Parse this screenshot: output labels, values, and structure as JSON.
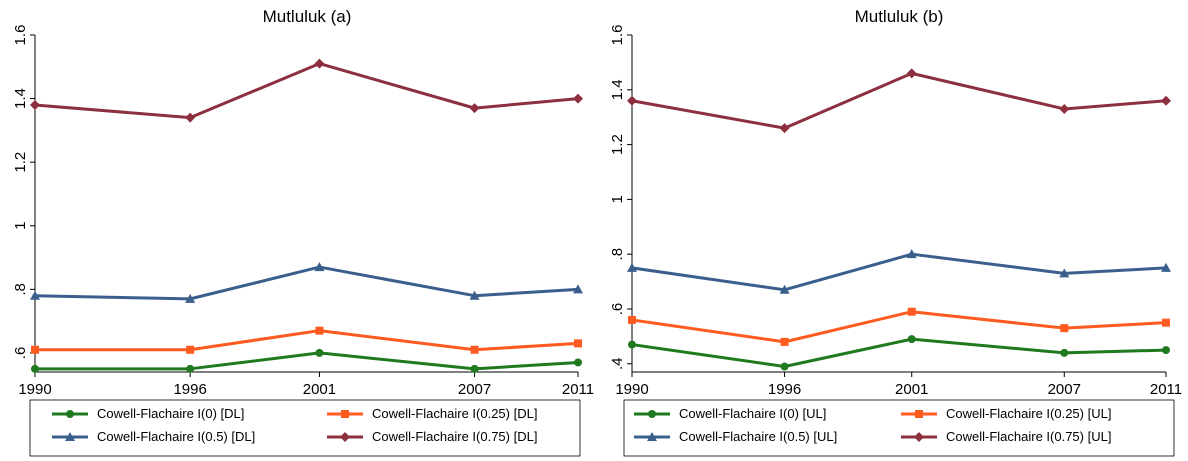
{
  "colors": {
    "I0": "#1f7a1f",
    "I025": "#ff5a1f",
    "I05": "#3a5f8c",
    "I075": "#8c3040"
  },
  "chart_data": [
    {
      "type": "line",
      "title": "Mutluluk (a)",
      "xlabel": "",
      "ylabel": "",
      "x": [
        1990,
        1996,
        2001,
        2007,
        2011
      ],
      "x_tick_labels": [
        "1990",
        "1996",
        "2001",
        "2007",
        "2011"
      ],
      "xlim": [
        1990,
        2011
      ],
      "ylim": [
        0.54,
        1.6
      ],
      "y_ticks": [
        0.6,
        0.8,
        1.0,
        1.2,
        1.4,
        1.6
      ],
      "y_tick_labels": [
        ".6",
        ".8",
        "1",
        "1.2",
        "1.4",
        "1.6"
      ],
      "grid": false,
      "legend_position": "bottom",
      "series": [
        {
          "name": "Cowell-Flachaire I(0) [DL]",
          "color_key": "I0",
          "marker": "circle",
          "values": [
            0.55,
            0.55,
            0.6,
            0.55,
            0.57
          ]
        },
        {
          "name": "Cowell-Flachaire I(0.25) [DL]",
          "color_key": "I025",
          "marker": "square",
          "values": [
            0.61,
            0.61,
            0.67,
            0.61,
            0.63
          ]
        },
        {
          "name": "Cowell-Flachaire I(0.5) [DL]",
          "color_key": "I05",
          "marker": "triangle",
          "values": [
            0.78,
            0.77,
            0.87,
            0.78,
            0.8
          ]
        },
        {
          "name": "Cowell-Flachaire I(0.75) [DL]",
          "color_key": "I075",
          "marker": "diamond",
          "values": [
            1.38,
            1.34,
            1.51,
            1.37,
            1.4
          ]
        }
      ]
    },
    {
      "type": "line",
      "title": "Mutluluk (b)",
      "xlabel": "",
      "ylabel": "",
      "x": [
        1990,
        1996,
        2001,
        2007,
        2011
      ],
      "x_tick_labels": [
        "1990",
        "1996",
        "2001",
        "2007",
        "2011"
      ],
      "xlim": [
        1990,
        2011
      ],
      "ylim": [
        0.37,
        1.6
      ],
      "y_ticks": [
        0.4,
        0.6,
        0.8,
        1.0,
        1.2,
        1.4,
        1.6
      ],
      "y_tick_labels": [
        ".4",
        ".6",
        ".8",
        "1",
        "1.2",
        "1.4",
        "1.6"
      ],
      "grid": false,
      "legend_position": "bottom",
      "series": [
        {
          "name": "Cowell-Flachaire I(0) [UL]",
          "color_key": "I0",
          "marker": "circle",
          "values": [
            0.47,
            0.39,
            0.49,
            0.44,
            0.45
          ]
        },
        {
          "name": "Cowell-Flachaire I(0.25) [UL]",
          "color_key": "I025",
          "marker": "square",
          "values": [
            0.56,
            0.48,
            0.59,
            0.53,
            0.55
          ]
        },
        {
          "name": "Cowell-Flachaire I(0.5) [UL]",
          "color_key": "I05",
          "marker": "triangle",
          "values": [
            0.75,
            0.67,
            0.8,
            0.73,
            0.75
          ]
        },
        {
          "name": "Cowell-Flachaire I(0.75) [UL]",
          "color_key": "I075",
          "marker": "diamond",
          "values": [
            1.36,
            1.26,
            1.46,
            1.33,
            1.36
          ]
        }
      ]
    }
  ]
}
